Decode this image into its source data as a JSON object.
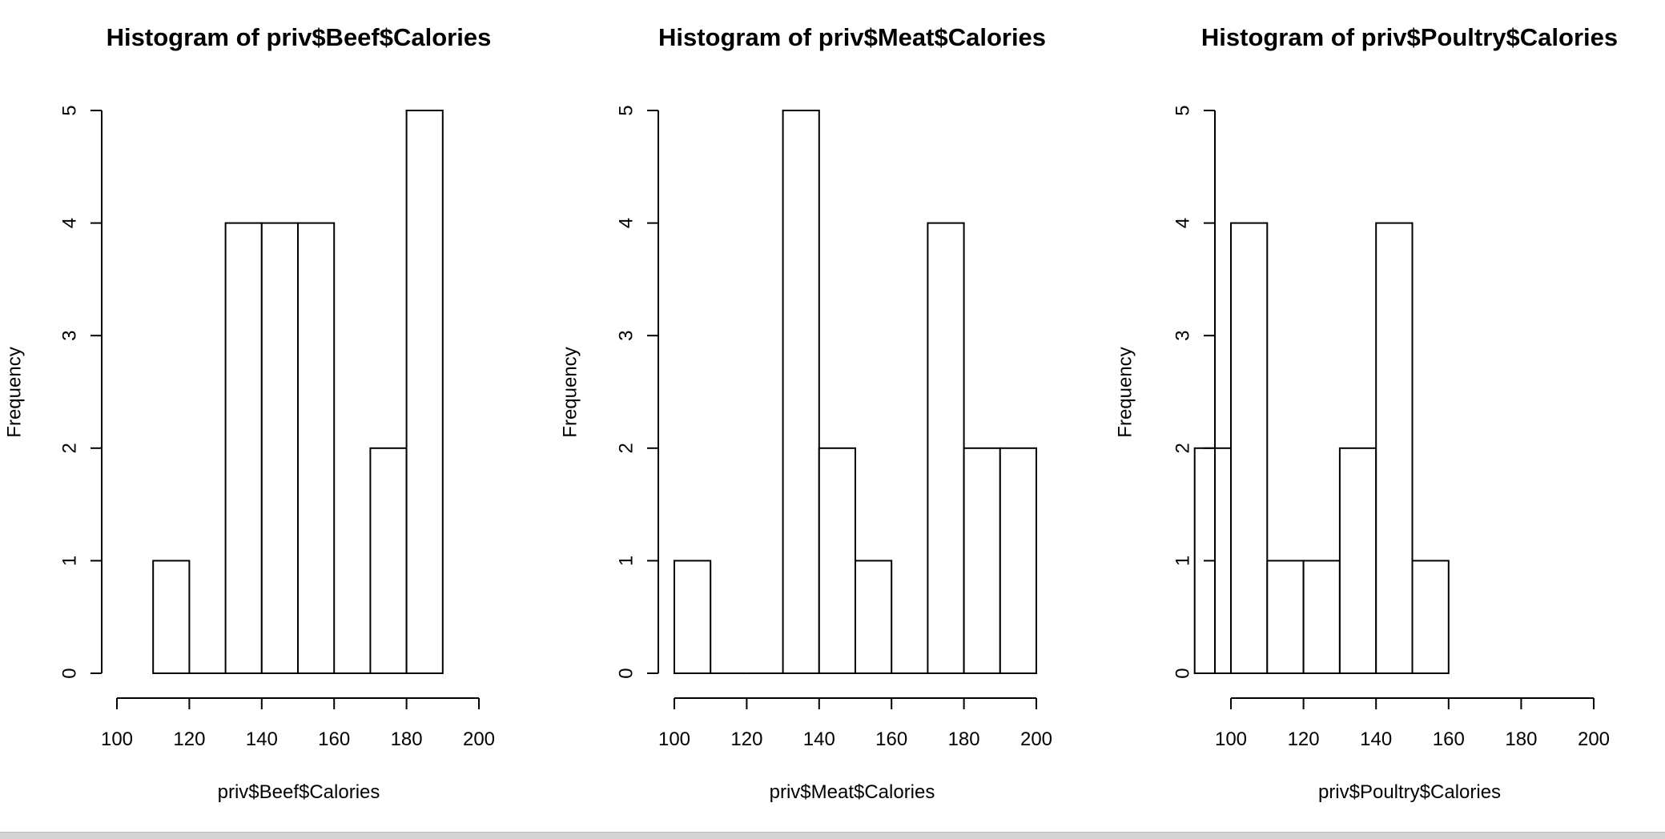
{
  "chart_data": [
    {
      "type": "histogram",
      "title": "Histogram of priv$Beef$Calories",
      "xlabel": "priv$Beef$Calories",
      "ylabel": "Frequency",
      "xlim": [
        100,
        200
      ],
      "ylim": [
        0,
        5
      ],
      "xticks": [
        100,
        120,
        140,
        160,
        180,
        200
      ],
      "yticks": [
        0,
        1,
        2,
        3,
        4,
        5
      ],
      "bins": [
        {
          "from": 110,
          "to": 120,
          "count": 1
        },
        {
          "from": 120,
          "to": 130,
          "count": 0
        },
        {
          "from": 130,
          "to": 140,
          "count": 4
        },
        {
          "from": 140,
          "to": 150,
          "count": 4
        },
        {
          "from": 150,
          "to": 160,
          "count": 4
        },
        {
          "from": 160,
          "to": 170,
          "count": 0
        },
        {
          "from": 170,
          "to": 180,
          "count": 2
        },
        {
          "from": 180,
          "to": 190,
          "count": 5
        }
      ]
    },
    {
      "type": "histogram",
      "title": "Histogram of priv$Meat$Calories",
      "xlabel": "priv$Meat$Calories",
      "ylabel": "Frequency",
      "xlim": [
        100,
        200
      ],
      "ylim": [
        0,
        5
      ],
      "xticks": [
        100,
        120,
        140,
        160,
        180,
        200
      ],
      "yticks": [
        0,
        1,
        2,
        3,
        4,
        5
      ],
      "bins": [
        {
          "from": 100,
          "to": 110,
          "count": 1
        },
        {
          "from": 110,
          "to": 120,
          "count": 0
        },
        {
          "from": 120,
          "to": 130,
          "count": 0
        },
        {
          "from": 130,
          "to": 140,
          "count": 5
        },
        {
          "from": 140,
          "to": 150,
          "count": 2
        },
        {
          "from": 150,
          "to": 160,
          "count": 1
        },
        {
          "from": 160,
          "to": 170,
          "count": 0
        },
        {
          "from": 170,
          "to": 180,
          "count": 4
        },
        {
          "from": 180,
          "to": 190,
          "count": 2
        },
        {
          "from": 190,
          "to": 200,
          "count": 2
        }
      ]
    },
    {
      "type": "histogram",
      "title": "Histogram of priv$Poultry$Calories",
      "xlabel": "priv$Poultry$Calories",
      "ylabel": "Frequency",
      "xlim": [
        100,
        200
      ],
      "ylim": [
        0,
        5
      ],
      "xticks": [
        100,
        120,
        140,
        160,
        180,
        200
      ],
      "yticks": [
        0,
        1,
        2,
        3,
        4,
        5
      ],
      "bins": [
        {
          "from": 90,
          "to": 100,
          "count": 2
        },
        {
          "from": 100,
          "to": 110,
          "count": 4
        },
        {
          "from": 110,
          "to": 120,
          "count": 1
        },
        {
          "from": 120,
          "to": 130,
          "count": 1
        },
        {
          "from": 130,
          "to": 140,
          "count": 2
        },
        {
          "from": 140,
          "to": 150,
          "count": 4
        },
        {
          "from": 150,
          "to": 160,
          "count": 1
        }
      ]
    }
  ]
}
